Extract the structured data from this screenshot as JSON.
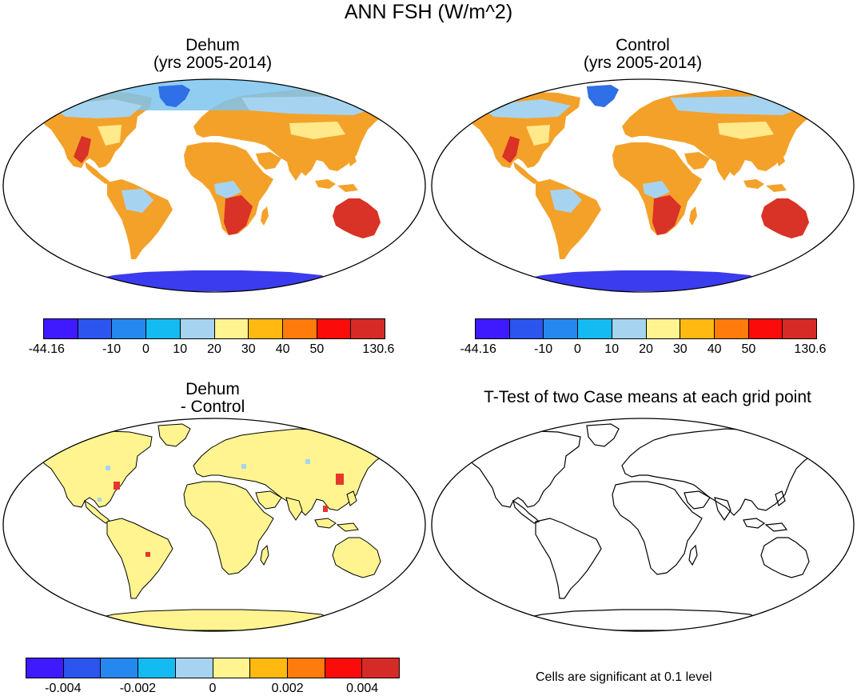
{
  "title": "ANN FSH (W/m^2)",
  "panels": {
    "p1": {
      "title": "Dehum",
      "subtitle": "(yrs 2005-2014)"
    },
    "p2": {
      "title": "Control",
      "subtitle": "(yrs 2005-2014)"
    },
    "p3": {
      "title": "Dehum",
      "subtitle": "- Control"
    },
    "p4": {
      "title": "T-Test of two Case means at each grid point"
    }
  },
  "colorbars": {
    "main": {
      "colors": [
        "#3f1aff",
        "#2c54ee",
        "#2588f0",
        "#14baf2",
        "#a6d4f0",
        "#fff490",
        "#ffb911",
        "#ff7b0c",
        "#fb0b0a",
        "#d62a26"
      ],
      "labels": [
        "-44.16",
        "-10",
        "0",
        "10",
        "20",
        "30",
        "40",
        "50",
        "130.6"
      ]
    },
    "diff": {
      "colors": [
        "#3f1aff",
        "#2c54ee",
        "#2588f0",
        "#14baf2",
        "#a6d4f0",
        "#fff490",
        "#ffb911",
        "#ff7b0c",
        "#fb0b0a",
        "#d62a26"
      ],
      "labels": [
        "-0.004",
        "-0.002",
        "0",
        "0.002",
        "0.004"
      ]
    }
  },
  "note": "Cells are significant at 0.1 level"
}
